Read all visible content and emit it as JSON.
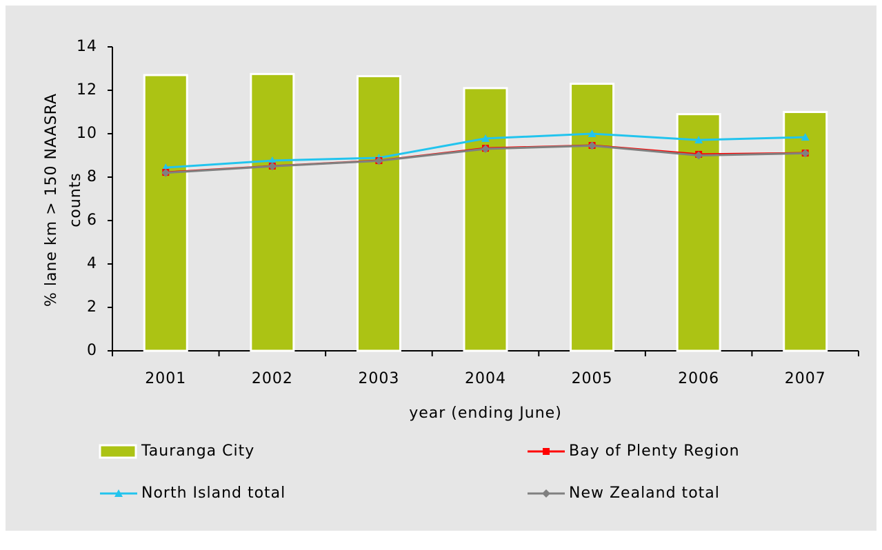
{
  "chart_data": {
    "type": "bar",
    "x_label": "year (ending June)",
    "y_label": [
      "% lane km > 150 NAASRA",
      "counts"
    ],
    "categories": [
      "2001",
      "2002",
      "2003",
      "2004",
      "2005",
      "2006",
      "2007"
    ],
    "ylim": [
      0,
      14
    ],
    "yticks": [
      0,
      2,
      4,
      6,
      8,
      10,
      12,
      14
    ],
    "series": [
      {
        "name": "Tauranga City",
        "type": "bar",
        "color": "#acc314",
        "values": [
          12.7,
          12.75,
          12.65,
          12.1,
          12.3,
          10.9,
          11.0
        ]
      },
      {
        "name": "Bay of Plenty Region",
        "type": "line",
        "marker": "square",
        "color": "#ff0000",
        "values": [
          8.22,
          8.51,
          8.76,
          9.33,
          9.46,
          9.05,
          9.11
        ]
      },
      {
        "name": "North Island total",
        "type": "line",
        "marker": "triangle",
        "color": "#22c4ee",
        "values": [
          8.44,
          8.76,
          8.89,
          9.78,
          10.0,
          9.71,
          9.84
        ]
      },
      {
        "name": "New Zealand total",
        "type": "line",
        "marker": "diamond",
        "color": "#808080",
        "values": [
          8.2,
          8.5,
          8.75,
          9.3,
          9.45,
          9.0,
          9.1
        ]
      }
    ]
  }
}
